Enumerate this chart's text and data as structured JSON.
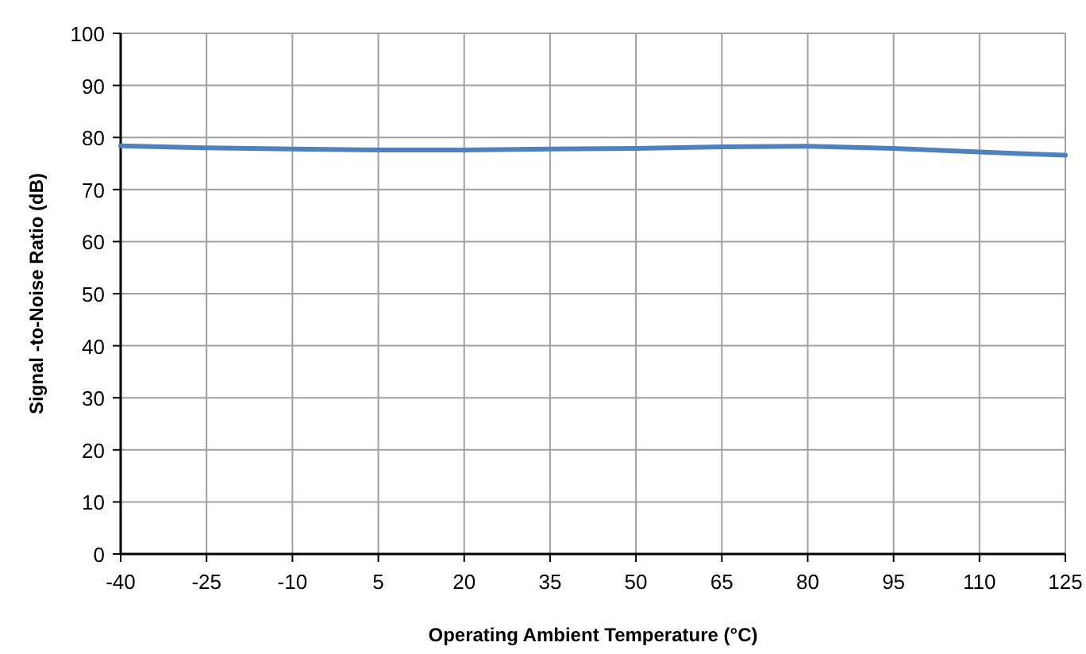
{
  "chart_data": {
    "type": "line",
    "xlabel": "Operating Ambient Temperature (°C)",
    "ylabel": "Signal -to-Noise Ratio (dB)",
    "x": [
      -40,
      -25,
      -10,
      5,
      20,
      35,
      50,
      65,
      80,
      95,
      110,
      125
    ],
    "series": [
      {
        "color": "#4f81bd",
        "values": [
          78.4,
          78.0,
          77.8,
          77.6,
          77.6,
          77.8,
          77.9,
          78.2,
          78.3,
          77.9,
          77.2,
          76.6
        ]
      }
    ],
    "xlim": [
      -40,
      125
    ],
    "xticks": [
      -40,
      -25,
      -10,
      5,
      20,
      35,
      50,
      65,
      80,
      95,
      110,
      125
    ],
    "ylim": [
      0,
      100
    ],
    "yticks": [
      0,
      10,
      20,
      30,
      40,
      50,
      60,
      70,
      80,
      90,
      100
    ],
    "grid": true,
    "marker": "none",
    "line_style": "solid"
  }
}
